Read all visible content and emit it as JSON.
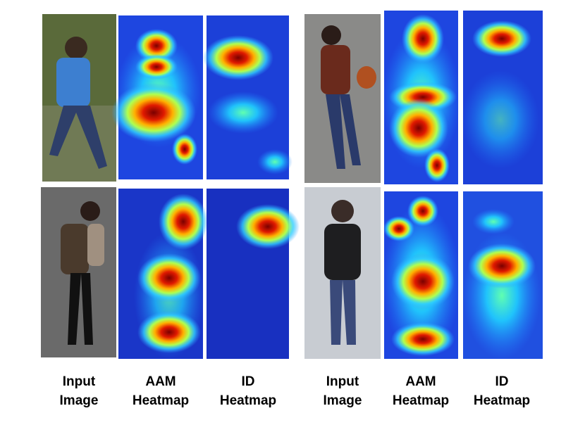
{
  "captions": [
    {
      "line1": "Input",
      "line2": "Image"
    },
    {
      "line1": "AAM",
      "line2": "Heatmap"
    },
    {
      "line1": "ID",
      "line2": "Heatmap"
    },
    {
      "line1": "Input",
      "line2": "Image"
    },
    {
      "line1": "AAM",
      "line2": "Heatmap"
    },
    {
      "line1": "ID",
      "line2": "Heatmap"
    }
  ]
}
